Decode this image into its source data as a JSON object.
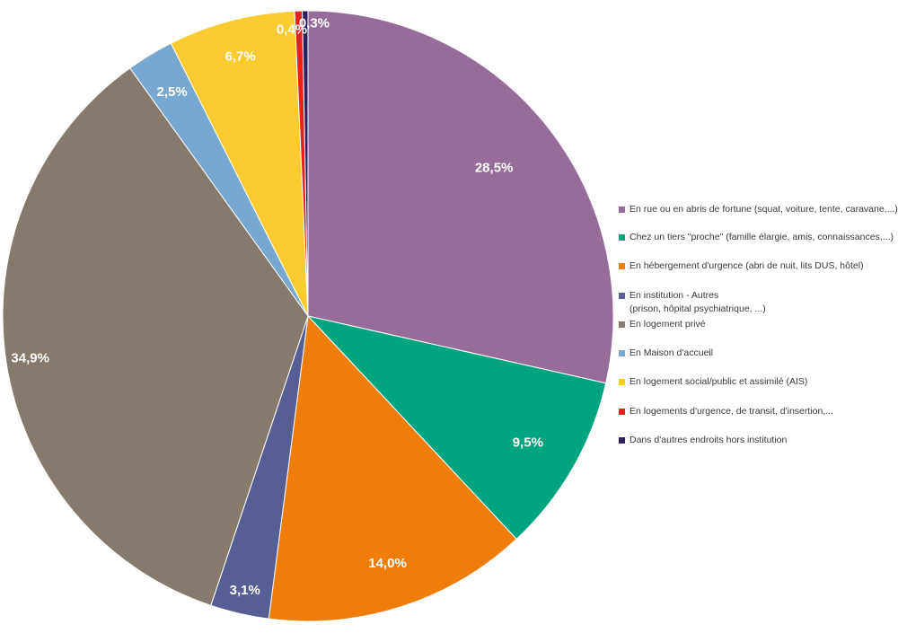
{
  "chart_data": {
    "type": "pie",
    "categories": [
      "En rue ou en abris de fortune  (squat, voiture, tente, caravane,...)",
      "Chez un tiers \"proche\" (famille élargie, amis, connaissances,...)",
      "En hébergement d'urgence (abri de nuit, lits DUS, hôtel)",
      "En institution - Autres (prison, hôpital psychiatrique, ...)",
      "En logement privé",
      "En Maison d'accueil",
      "En logement social/public et assimilé (AIS)",
      "En logements  d'urgence, de transit, d'insertion,...",
      "Dans d'autres endroits hors institution"
    ],
    "values": [
      28.5,
      9.5,
      14.0,
      3.1,
      34.9,
      2.5,
      6.7,
      0.4,
      0.3
    ],
    "value_labels": [
      "28,5%",
      "9,5%",
      "14,0%",
      "3,1%",
      "34,9%",
      "2,5%",
      "6,7%",
      "0,4%",
      "0,3%"
    ],
    "colors": [
      "#976C9B",
      "#00A57F",
      "#EE7D0A",
      "#565E93",
      "#857A6B",
      "#78A7CF",
      "#FBCB2F",
      "#E2231C",
      "#2D1F61"
    ],
    "start_angle_deg": 0,
    "direction": "clockwise",
    "legend_position": "right"
  },
  "legend": {
    "items": [
      {
        "line1": "En rue ou en abris de fortune  (squat, voiture, tente, caravane,...)",
        "line2": ""
      },
      {
        "line1": "Chez un tiers \"proche\" (famille élargie, amis, connaissances,...)",
        "line2": ""
      },
      {
        "line1": "En hébergement d'urgence (abri de nuit, lits DUS, hôtel)",
        "line2": ""
      },
      {
        "line1": "En institution - Autres",
        "line2": "(prison, hôpital psychiatrique, ...)"
      },
      {
        "line1": "En logement privé",
        "line2": ""
      },
      {
        "line1": "En Maison d'accueil",
        "line2": ""
      },
      {
        "line1": "En logement social/public et assimilé (AIS)",
        "line2": ""
      },
      {
        "line1": "En logements  d'urgence, de transit, d'insertion,...",
        "line2": ""
      },
      {
        "line1": "Dans d'autres endroits hors institution",
        "line2": ""
      }
    ]
  }
}
